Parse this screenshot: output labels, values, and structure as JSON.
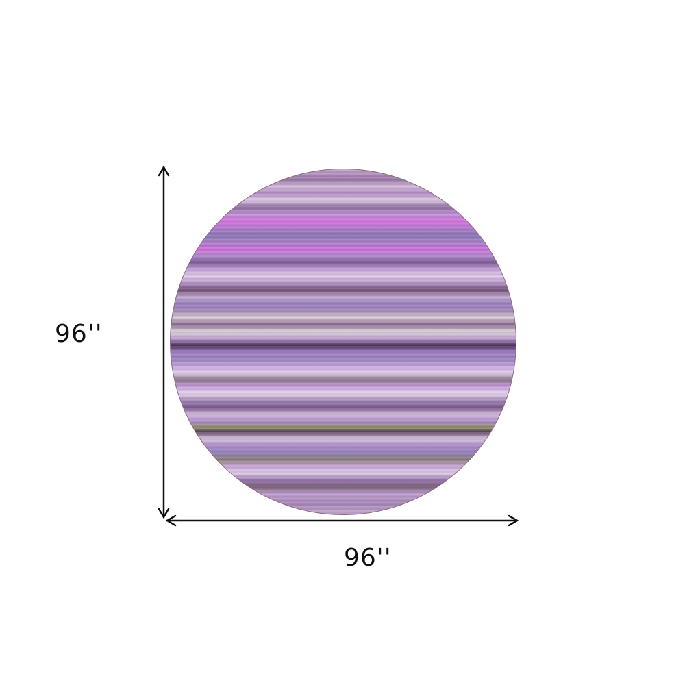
{
  "product": {
    "shape": "round rug",
    "colors": {
      "primary": "#b08cc8",
      "accent": "#d878e0",
      "dark": "#5a3a64"
    }
  },
  "dimensions": {
    "height_label": "96''",
    "width_label": "96''"
  }
}
